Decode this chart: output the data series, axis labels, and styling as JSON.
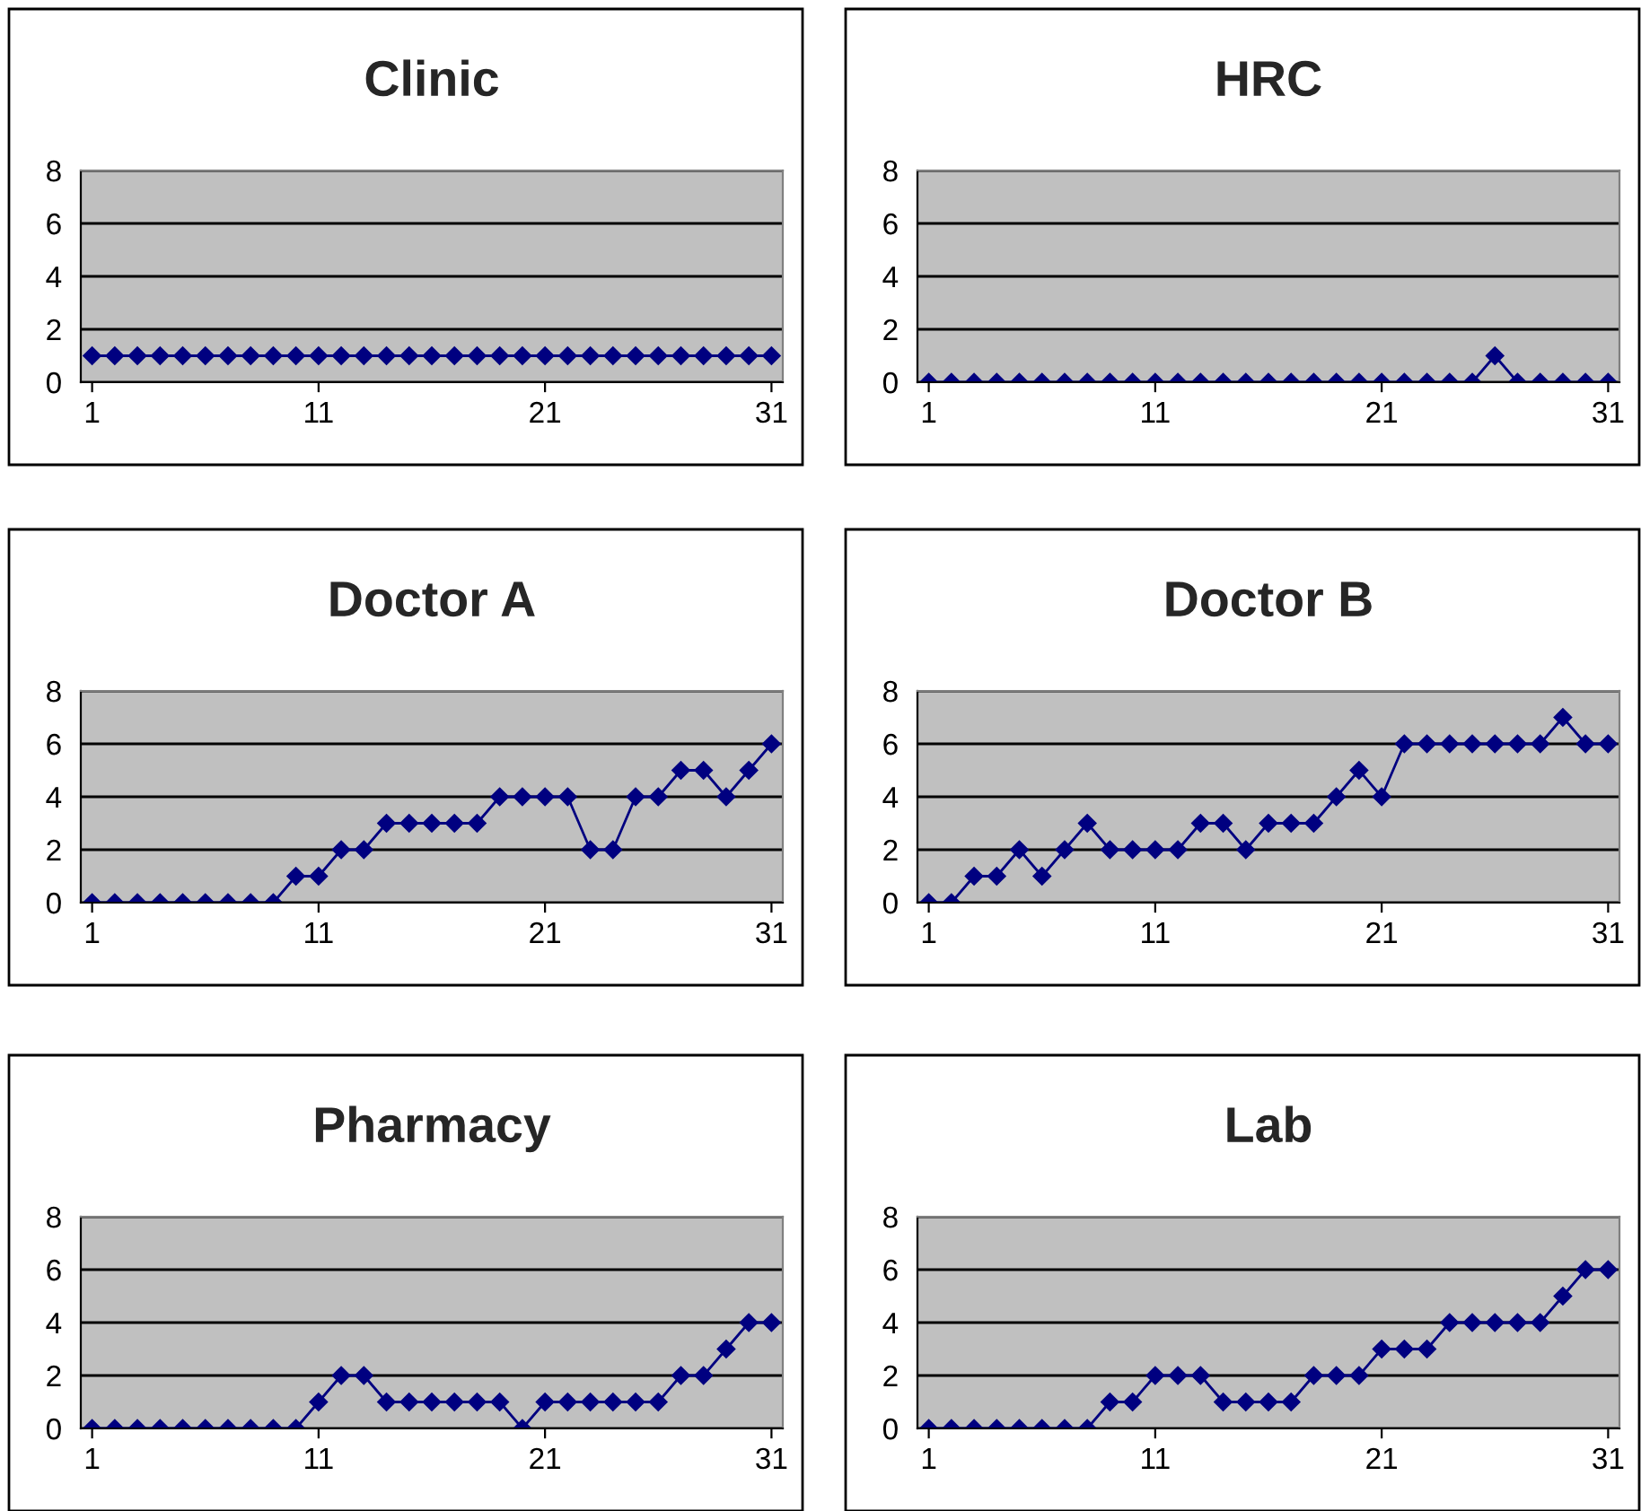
{
  "chart_data": [
    {
      "type": "line",
      "title": "Clinic",
      "categories": [
        "1",
        null,
        null,
        null,
        null,
        null,
        null,
        null,
        null,
        null,
        "11",
        null,
        null,
        null,
        null,
        null,
        null,
        null,
        null,
        null,
        "21",
        null,
        null,
        null,
        null,
        null,
        null,
        null,
        null,
        null,
        "31"
      ],
      "series": [
        {
          "color": "#000080",
          "values": [
            1,
            1,
            1,
            1,
            1,
            1,
            1,
            1,
            1,
            1,
            1,
            1,
            1,
            1,
            1,
            1,
            1,
            1,
            1,
            1,
            1,
            1,
            1,
            1,
            1,
            1,
            1,
            1,
            1,
            1,
            1
          ]
        }
      ],
      "ylim": [
        0,
        8
      ],
      "yticks": [
        0,
        2,
        4,
        6,
        8
      ],
      "grid": "y",
      "marker": "diamond",
      "line_style": "solid"
    },
    {
      "type": "line",
      "title": "HRC",
      "categories": [
        "1",
        null,
        null,
        null,
        null,
        null,
        null,
        null,
        null,
        null,
        "11",
        null,
        null,
        null,
        null,
        null,
        null,
        null,
        null,
        null,
        "21",
        null,
        null,
        null,
        null,
        null,
        null,
        null,
        null,
        null,
        "31"
      ],
      "series": [
        {
          "color": "#000080",
          "values": [
            0,
            0,
            0,
            0,
            0,
            0,
            0,
            0,
            0,
            0,
            0,
            0,
            0,
            0,
            0,
            0,
            0,
            0,
            0,
            0,
            0,
            0,
            0,
            0,
            0,
            1,
            0,
            0,
            0,
            0,
            0
          ]
        }
      ],
      "ylim": [
        0,
        8
      ],
      "yticks": [
        0,
        2,
        4,
        6,
        8
      ],
      "grid": "y",
      "marker": "diamond",
      "line_style": "solid"
    },
    {
      "type": "line",
      "title": "Doctor A",
      "categories": [
        "1",
        null,
        null,
        null,
        null,
        null,
        null,
        null,
        null,
        null,
        "11",
        null,
        null,
        null,
        null,
        null,
        null,
        null,
        null,
        null,
        "21",
        null,
        null,
        null,
        null,
        null,
        null,
        null,
        null,
        null,
        "31"
      ],
      "series": [
        {
          "color": "#000080",
          "values": [
            0,
            0,
            0,
            0,
            0,
            0,
            0,
            0,
            0,
            1,
            1,
            2,
            2,
            3,
            3,
            3,
            3,
            3,
            4,
            4,
            4,
            4,
            2,
            2,
            4,
            4,
            5,
            5,
            4,
            5,
            6
          ]
        }
      ],
      "ylim": [
        0,
        8
      ],
      "yticks": [
        0,
        2,
        4,
        6,
        8
      ],
      "grid": "y",
      "marker": "diamond",
      "line_style": "solid"
    },
    {
      "type": "line",
      "title": "Doctor B",
      "categories": [
        "1",
        null,
        null,
        null,
        null,
        null,
        null,
        null,
        null,
        null,
        "11",
        null,
        null,
        null,
        null,
        null,
        null,
        null,
        null,
        null,
        "21",
        null,
        null,
        null,
        null,
        null,
        null,
        null,
        null,
        null,
        "31"
      ],
      "series": [
        {
          "color": "#000080",
          "values": [
            0,
            0,
            1,
            1,
            2,
            1,
            2,
            3,
            2,
            2,
            2,
            2,
            3,
            3,
            2,
            3,
            3,
            3,
            4,
            5,
            4,
            6,
            6,
            6,
            6,
            6,
            6,
            6,
            7,
            6,
            6
          ]
        }
      ],
      "ylim": [
        0,
        8
      ],
      "yticks": [
        0,
        2,
        4,
        6,
        8
      ],
      "grid": "y",
      "marker": "diamond",
      "line_style": "solid"
    },
    {
      "type": "line",
      "title": "Pharmacy",
      "categories": [
        "1",
        null,
        null,
        null,
        null,
        null,
        null,
        null,
        null,
        null,
        "11",
        null,
        null,
        null,
        null,
        null,
        null,
        null,
        null,
        null,
        "21",
        null,
        null,
        null,
        null,
        null,
        null,
        null,
        null,
        null,
        "31"
      ],
      "series": [
        {
          "color": "#000080",
          "values": [
            0,
            0,
            0,
            0,
            0,
            0,
            0,
            0,
            0,
            0,
            1,
            2,
            2,
            1,
            1,
            1,
            1,
            1,
            1,
            0,
            1,
            1,
            1,
            1,
            1,
            1,
            2,
            2,
            3,
            4,
            4
          ]
        }
      ],
      "ylim": [
        0,
        8
      ],
      "yticks": [
        0,
        2,
        4,
        6,
        8
      ],
      "grid": "y",
      "marker": "diamond",
      "line_style": "solid"
    },
    {
      "type": "line",
      "title": "Lab",
      "categories": [
        "1",
        null,
        null,
        null,
        null,
        null,
        null,
        null,
        null,
        null,
        "11",
        null,
        null,
        null,
        null,
        null,
        null,
        null,
        null,
        null,
        "21",
        null,
        null,
        null,
        null,
        null,
        null,
        null,
        null,
        null,
        "31"
      ],
      "series": [
        {
          "color": "#000080",
          "values": [
            0,
            0,
            0,
            0,
            0,
            0,
            0,
            0,
            1,
            1,
            2,
            2,
            2,
            1,
            1,
            1,
            1,
            2,
            2,
            2,
            3,
            3,
            3,
            4,
            4,
            4,
            4,
            4,
            5,
            6,
            6
          ]
        }
      ],
      "ylim": [
        0,
        8
      ],
      "yticks": [
        0,
        2,
        4,
        6,
        8
      ],
      "grid": "y",
      "marker": "diamond",
      "line_style": "solid"
    }
  ]
}
